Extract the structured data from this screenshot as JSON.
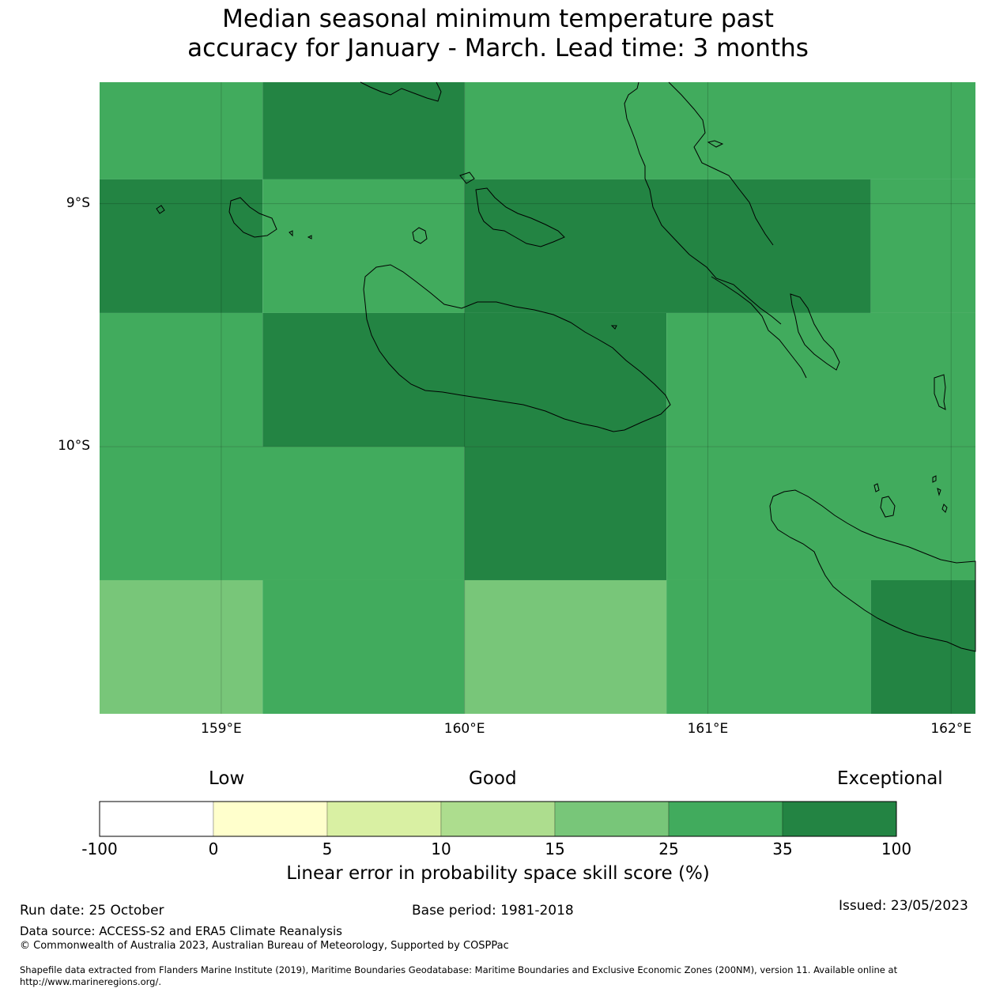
{
  "title": {
    "line1": "Median seasonal minimum temperature past",
    "line2": "accuracy for January - March. Lead time: 3 months"
  },
  "map": {
    "lon_range": [
      158.5,
      162.1
    ],
    "lat_range": [
      -11.1,
      -8.5
    ],
    "lat_ticks": [
      {
        "lat": -9,
        "label": "9°S"
      },
      {
        "lat": -10,
        "label": "10°S"
      }
    ],
    "lon_ticks": [
      {
        "lon": 159,
        "label": "159°E"
      },
      {
        "lon": 160,
        "label": "160°E"
      },
      {
        "lon": 161,
        "label": "161°E"
      },
      {
        "lon": 162,
        "label": "162°E"
      }
    ],
    "cells": [
      {
        "lon0": 158.5,
        "lon1": 159.17,
        "lat0": -8.9,
        "lat1": -8.5,
        "category": "25-35"
      },
      {
        "lon0": 159.17,
        "lon1": 160.0,
        "lat0": -8.9,
        "lat1": -8.5,
        "category": "35-100"
      },
      {
        "lon0": 160.0,
        "lon1": 162.1,
        "lat0": -8.9,
        "lat1": -8.5,
        "category": "25-35"
      },
      {
        "lon0": 158.5,
        "lon1": 159.17,
        "lat0": -9.45,
        "lat1": -8.9,
        "category": "35-100"
      },
      {
        "lon0": 159.17,
        "lon1": 160.0,
        "lat0": -9.45,
        "lat1": -8.9,
        "category": "25-35"
      },
      {
        "lon0": 160.0,
        "lon1": 161.67,
        "lat0": -9.45,
        "lat1": -8.9,
        "category": "35-100"
      },
      {
        "lon0": 161.67,
        "lon1": 162.1,
        "lat0": -9.45,
        "lat1": -8.9,
        "category": "25-35"
      },
      {
        "lon0": 158.5,
        "lon1": 159.17,
        "lat0": -10.0,
        "lat1": -9.45,
        "category": "25-35"
      },
      {
        "lon0": 159.17,
        "lon1": 160.83,
        "lat0": -10.0,
        "lat1": -9.45,
        "category": "35-100"
      },
      {
        "lon0": 160.83,
        "lon1": 162.1,
        "lat0": -10.0,
        "lat1": -9.45,
        "category": "25-35"
      },
      {
        "lon0": 158.5,
        "lon1": 160.0,
        "lat0": -10.55,
        "lat1": -10.0,
        "category": "25-35"
      },
      {
        "lon0": 160.0,
        "lon1": 160.83,
        "lat0": -10.55,
        "lat1": -10.0,
        "category": "35-100"
      },
      {
        "lon0": 160.83,
        "lon1": 162.1,
        "lat0": -10.55,
        "lat1": -10.0,
        "category": "25-35"
      },
      {
        "lon0": 158.5,
        "lon1": 159.17,
        "lat0": -11.1,
        "lat1": -10.55,
        "category": "15-25"
      },
      {
        "lon0": 159.17,
        "lon1": 160.0,
        "lat0": -11.1,
        "lat1": -10.55,
        "category": "25-35"
      },
      {
        "lon0": 160.0,
        "lon1": 160.83,
        "lat0": -11.1,
        "lat1": -10.55,
        "category": "15-25"
      },
      {
        "lon0": 160.83,
        "lon1": 161.67,
        "lat0": -11.1,
        "lat1": -10.55,
        "category": "25-35"
      },
      {
        "lon0": 161.67,
        "lon1": 162.1,
        "lat0": -11.1,
        "lat1": -10.55,
        "category": "35-100"
      }
    ]
  },
  "legend": {
    "low": "Low",
    "good": "Good",
    "exceptional": "Exceptional",
    "ticks": [
      "-100",
      "0",
      "5",
      "10",
      "15",
      "25",
      "35",
      "100"
    ],
    "label": "Linear error in probability space skill score (%)",
    "bins": [
      {
        "range": "-100-0",
        "color": "#ffffff"
      },
      {
        "range": "0-5",
        "color": "#ffffcc"
      },
      {
        "range": "5-10",
        "color": "#d9f0a3"
      },
      {
        "range": "10-15",
        "color": "#addd8e"
      },
      {
        "range": "15-25",
        "color": "#78c679"
      },
      {
        "range": "25-35",
        "color": "#41ab5d"
      },
      {
        "range": "35-100",
        "color": "#238443"
      }
    ]
  },
  "footer": {
    "run_date": "Run date: 25 October",
    "base_period": "Base period: 1981-2018",
    "issued": "Issued: 23/05/2023",
    "data_source": "Data source: ACCESS-S2 and ERA5 Climate Reanalysis",
    "copyright": "© Commonwealth of Australia 2023, Australian Bureau of Meteorology, Supported by COSPPac",
    "shapefile_line1": "Shapefile data extracted from Flanders Marine Institute (2019), Maritime Boundaries Geodatabase: Maritime Boundaries and Exclusive Economic Zones (200NM), version 11. Available online at",
    "shapefile_line2": "http://www.marineregions.org/."
  }
}
